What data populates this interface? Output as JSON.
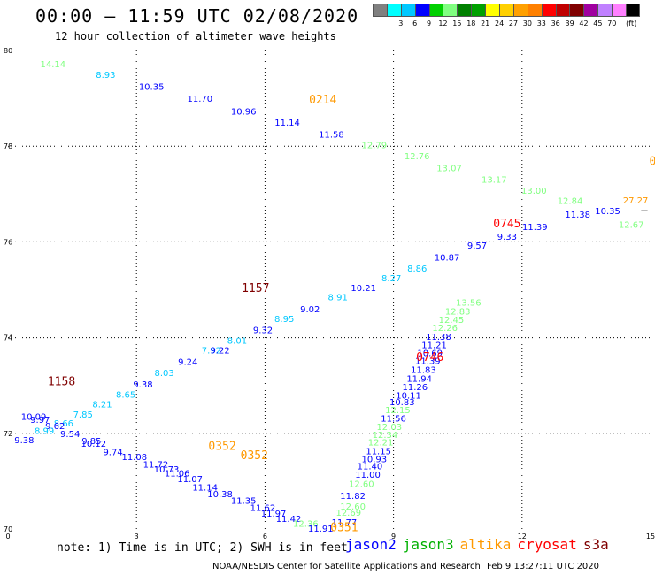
{
  "header": {
    "title": "00:00 – 11:59 UTC 02/08/2020",
    "subtitle": "12 hour collection of altimeter wave heights"
  },
  "colorbar": {
    "unit": "(ft)",
    "colors": [
      "#808080",
      "#00ffff",
      "#00c8ff",
      "#0000ff",
      "#00d000",
      "#80ff80",
      "#008000",
      "#00a000",
      "#ffff00",
      "#ffd000",
      "#ffa000",
      "#ff8000",
      "#ff0000",
      "#c00000",
      "#800000",
      "#a000a0",
      "#c080ff",
      "#ff80ff",
      "#000000"
    ],
    "labels": [
      "3",
      "6",
      "9",
      "12",
      "15",
      "18",
      "21",
      "24",
      "27",
      "30",
      "33",
      "36",
      "39",
      "42",
      "45",
      "70"
    ]
  },
  "note": "note:  1) Time is in UTC;  2) SWH is in feet",
  "satellites": [
    {
      "name": "jason2",
      "color": "#0000ff"
    },
    {
      "name": "jason3",
      "color": "#00b000"
    },
    {
      "name": "altika",
      "color": "#ff9900"
    },
    {
      "name": "cryosat",
      "color": "#ff0000"
    },
    {
      "name": "s3a",
      "color": "#800000"
    }
  ],
  "credit": {
    "org": "NOAA/NESDIS Center for Satellite Applications and Research",
    "date": "Feb  9 13:27:11 UTC 2020"
  },
  "chart_data": {
    "type": "scatter",
    "xlim": [
      0,
      15
    ],
    "ylim": [
      70,
      80
    ],
    "x_ticks": [
      "0",
      "3",
      "6",
      "9",
      "12",
      "15"
    ],
    "y_ticks": [
      "70",
      "72",
      "74",
      "76",
      "78",
      "80"
    ],
    "grid": true,
    "track_labels": [
      {
        "text": "0214",
        "x": 7.35,
        "y": 78.98,
        "color": "#ff9900"
      },
      {
        "text": "1157",
        "x": 5.78,
        "y": 75.05,
        "color": "#800000"
      },
      {
        "text": "1158",
        "x": 1.25,
        "y": 73.1,
        "color": "#800000"
      },
      {
        "text": "0745",
        "x": 11.65,
        "y": 76.4,
        "color": "#ff0000"
      },
      {
        "text": "0746",
        "x": 9.85,
        "y": 73.6,
        "color": "#ff0000"
      },
      {
        "text": "0352",
        "x": 5.0,
        "y": 71.75,
        "color": "#ff9900"
      },
      {
        "text": "0352",
        "x": 5.75,
        "y": 71.55,
        "color": "#ff9900"
      },
      {
        "text": "0351",
        "x": 7.85,
        "y": 70.05,
        "color": "#ff9900"
      },
      {
        "text": "0",
        "x": 15.05,
        "y": 77.7,
        "color": "#ff9900"
      }
    ],
    "points": [
      {
        "v": "14.14",
        "x": 1.05,
        "y": 79.72,
        "c": "#80ff80"
      },
      {
        "v": "8.93",
        "x": 2.28,
        "y": 79.5,
        "c": "#00c8ff"
      },
      {
        "v": "10.35",
        "x": 3.35,
        "y": 79.25,
        "c": "#0000ff"
      },
      {
        "v": "11.70",
        "x": 4.48,
        "y": 79.0,
        "c": "#0000ff"
      },
      {
        "v": "10.96",
        "x": 5.5,
        "y": 78.73,
        "c": "#0000ff"
      },
      {
        "v": "11.14",
        "x": 6.52,
        "y": 78.5,
        "c": "#0000ff"
      },
      {
        "v": "11.58",
        "x": 7.55,
        "y": 78.25,
        "c": "#0000ff"
      },
      {
        "v": "12.79",
        "x": 8.55,
        "y": 78.03,
        "c": "#80ff80"
      },
      {
        "v": "12.76",
        "x": 9.55,
        "y": 77.8,
        "c": "#80ff80"
      },
      {
        "v": "13.07",
        "x": 10.3,
        "y": 77.55,
        "c": "#80ff80"
      },
      {
        "v": "13.17",
        "x": 11.35,
        "y": 77.31,
        "c": "#80ff80"
      },
      {
        "v": "13.00",
        "x": 12.28,
        "y": 77.08,
        "c": "#80ff80"
      },
      {
        "v": "12.84",
        "x": 13.12,
        "y": 76.87,
        "c": "#80ff80"
      },
      {
        "v": "10.35",
        "x": 14.0,
        "y": 76.65,
        "c": "#0000ff"
      },
      {
        "v": "12.67",
        "x": 14.55,
        "y": 76.37,
        "c": "#80ff80"
      },
      {
        "v": "27.27",
        "x": 14.65,
        "y": 76.88,
        "c": "#ff9900"
      },
      {
        "v": "11.38",
        "x": 13.3,
        "y": 76.58,
        "c": "#0000ff"
      },
      {
        "v": "11.39",
        "x": 12.3,
        "y": 76.32,
        "c": "#0000ff"
      },
      {
        "v": "9.33",
        "x": 11.65,
        "y": 76.12,
        "c": "#0000ff"
      },
      {
        "v": "9.57",
        "x": 10.95,
        "y": 75.93,
        "c": "#0000ff"
      },
      {
        "v": "10.87",
        "x": 10.25,
        "y": 75.68,
        "c": "#0000ff"
      },
      {
        "v": "8.86",
        "x": 9.55,
        "y": 75.45,
        "c": "#00c8ff"
      },
      {
        "v": "8.27",
        "x": 8.95,
        "y": 75.25,
        "c": "#00c8ff"
      },
      {
        "v": "10.21",
        "x": 8.3,
        "y": 75.05,
        "c": "#0000ff"
      },
      {
        "v": "8.91",
        "x": 7.7,
        "y": 74.85,
        "c": "#00c8ff"
      },
      {
        "v": "9.02",
        "x": 7.05,
        "y": 74.6,
        "c": "#0000ff"
      },
      {
        "v": "8.95",
        "x": 6.45,
        "y": 74.4,
        "c": "#00c8ff"
      },
      {
        "v": "9.32",
        "x": 5.95,
        "y": 74.17,
        "c": "#0000ff"
      },
      {
        "v": "8.01",
        "x": 5.35,
        "y": 73.95,
        "c": "#00c8ff"
      },
      {
        "v": "7.92",
        "x": 4.75,
        "y": 73.74,
        "c": "#00c8ff"
      },
      {
        "v": "9.22",
        "x": 4.95,
        "y": 73.74,
        "c": "#0000ff"
      },
      {
        "v": "9.24",
        "x": 4.2,
        "y": 73.5,
        "c": "#0000ff"
      },
      {
        "v": "8.03",
        "x": 3.65,
        "y": 73.27,
        "c": "#00c8ff"
      },
      {
        "v": "9.38",
        "x": 3.15,
        "y": 73.03,
        "c": "#0000ff"
      },
      {
        "v": "8.65",
        "x": 2.75,
        "y": 72.82,
        "c": "#00c8ff"
      },
      {
        "v": "8.21",
        "x": 2.2,
        "y": 72.62,
        "c": "#00c8ff"
      },
      {
        "v": "7.85",
        "x": 1.75,
        "y": 72.4,
        "c": "#00c8ff"
      },
      {
        "v": "10.09",
        "x": 0.6,
        "y": 72.36,
        "c": "#0000ff"
      },
      {
        "v": "9.97",
        "x": 0.75,
        "y": 72.29,
        "c": "#0000ff"
      },
      {
        "v": "8.66",
        "x": 1.3,
        "y": 72.22,
        "c": "#00c8ff"
      },
      {
        "v": "9.62",
        "x": 1.1,
        "y": 72.16,
        "c": "#0000ff"
      },
      {
        "v": "8.99",
        "x": 0.85,
        "y": 72.06,
        "c": "#00c8ff"
      },
      {
        "v": "9.54",
        "x": 1.45,
        "y": 72.0,
        "c": "#0000ff"
      },
      {
        "v": "9.38",
        "x": 0.38,
        "y": 71.87,
        "c": "#0000ff"
      },
      {
        "v": "9.85",
        "x": 1.95,
        "y": 71.85,
        "c": "#0000ff"
      },
      {
        "v": "10.12",
        "x": 2.0,
        "y": 71.79,
        "c": "#0000ff"
      },
      {
        "v": "9.74",
        "x": 2.45,
        "y": 71.62,
        "c": "#0000ff"
      },
      {
        "v": "11.08",
        "x": 2.95,
        "y": 71.52,
        "c": "#0000ff"
      },
      {
        "v": "11.72",
        "x": 3.45,
        "y": 71.36,
        "c": "#0000ff"
      },
      {
        "v": "10.73",
        "x": 3.7,
        "y": 71.26,
        "c": "#0000ff"
      },
      {
        "v": "11.06",
        "x": 3.95,
        "y": 71.17,
        "c": "#0000ff"
      },
      {
        "v": "11.07",
        "x": 4.25,
        "y": 71.05,
        "c": "#0000ff"
      },
      {
        "v": "11.14",
        "x": 4.6,
        "y": 70.88,
        "c": "#0000ff"
      },
      {
        "v": "10.38",
        "x": 4.95,
        "y": 70.74,
        "c": "#0000ff"
      },
      {
        "v": "11.35",
        "x": 5.5,
        "y": 70.6,
        "c": "#0000ff"
      },
      {
        "v": "11.62",
        "x": 5.95,
        "y": 70.45,
        "c": "#0000ff"
      },
      {
        "v": "11.97",
        "x": 6.2,
        "y": 70.33,
        "c": "#0000ff"
      },
      {
        "v": "11.42",
        "x": 6.55,
        "y": 70.22,
        "c": "#0000ff"
      },
      {
        "v": "12.36",
        "x": 6.95,
        "y": 70.12,
        "c": "#80ff80"
      },
      {
        "v": "11.91",
        "x": 7.3,
        "y": 70.02,
        "c": "#0000ff"
      },
      {
        "v": "11.77",
        "x": 7.85,
        "y": 70.15,
        "c": "#0000ff"
      },
      {
        "v": "12.69",
        "x": 7.95,
        "y": 70.35,
        "c": "#80ff80"
      },
      {
        "v": "12.60",
        "x": 8.05,
        "y": 70.48,
        "c": "#80ff80"
      },
      {
        "v": "11.82",
        "x": 8.05,
        "y": 70.7,
        "c": "#0000ff"
      },
      {
        "v": "12.60",
        "x": 8.25,
        "y": 70.95,
        "c": "#80ff80"
      },
      {
        "v": "11.00",
        "x": 8.4,
        "y": 71.15,
        "c": "#0000ff"
      },
      {
        "v": "11.40",
        "x": 8.45,
        "y": 71.32,
        "c": "#0000ff"
      },
      {
        "v": "10.93",
        "x": 8.55,
        "y": 71.47,
        "c": "#0000ff"
      },
      {
        "v": "11.15",
        "x": 8.65,
        "y": 71.64,
        "c": "#0000ff"
      },
      {
        "v": "12.21",
        "x": 8.7,
        "y": 71.82,
        "c": "#80ff80"
      },
      {
        "v": "12.34",
        "x": 8.8,
        "y": 71.98,
        "c": "#80ff80"
      },
      {
        "v": "12.03",
        "x": 8.9,
        "y": 72.14,
        "c": "#80ff80"
      },
      {
        "v": "11.56",
        "x": 9.0,
        "y": 72.32,
        "c": "#0000ff"
      },
      {
        "v": "12.15",
        "x": 9.1,
        "y": 72.5,
        "c": "#80ff80"
      },
      {
        "v": "10.83",
        "x": 9.2,
        "y": 72.66,
        "c": "#0000ff"
      },
      {
        "v": "10.11",
        "x": 9.35,
        "y": 72.8,
        "c": "#0000ff"
      },
      {
        "v": "11.26",
        "x": 9.5,
        "y": 72.98,
        "c": "#0000ff"
      },
      {
        "v": "11.94",
        "x": 9.6,
        "y": 73.15,
        "c": "#0000ff"
      },
      {
        "v": "11.83",
        "x": 9.7,
        "y": 73.34,
        "c": "#0000ff"
      },
      {
        "v": "11.39",
        "x": 9.8,
        "y": 73.52,
        "c": "#0000ff"
      },
      {
        "v": "10.69",
        "x": 9.85,
        "y": 73.69,
        "c": "#0000ff"
      },
      {
        "v": "11.21",
        "x": 9.95,
        "y": 73.85,
        "c": "#0000ff"
      },
      {
        "v": "11.38",
        "x": 10.05,
        "y": 74.03,
        "c": "#0000ff"
      },
      {
        "v": "12.26",
        "x": 10.2,
        "y": 74.21,
        "c": "#80ff80"
      },
      {
        "v": "12.45",
        "x": 10.35,
        "y": 74.38,
        "c": "#80ff80"
      },
      {
        "v": "12.83",
        "x": 10.5,
        "y": 74.56,
        "c": "#80ff80"
      },
      {
        "v": "13.56",
        "x": 10.75,
        "y": 74.74,
        "c": "#80ff80"
      }
    ]
  }
}
